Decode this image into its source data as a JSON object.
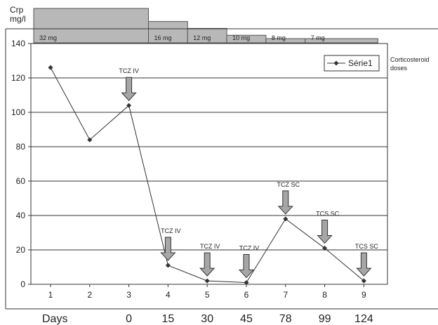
{
  "chart_data": {
    "type": "line",
    "ylabel": "Crp\nmg/l",
    "ylim": [
      0,
      140
    ],
    "yticks": [
      0,
      20,
      40,
      60,
      80,
      100,
      120,
      140
    ],
    "x": [
      "1",
      "2",
      "3",
      "4",
      "5",
      "6",
      "7",
      "8",
      "9"
    ],
    "series": [
      {
        "name": "Série1",
        "values": [
          126,
          84,
          104,
          11,
          2,
          1,
          38,
          21,
          2
        ],
        "color": "#333333"
      }
    ],
    "legend": {
      "position": "top-right",
      "label": "Série1"
    },
    "side_label": "Corticosteroid\ndoses",
    "grid": true,
    "doses": [
      {
        "label": "32 mg",
        "start": 1,
        "end": 3,
        "level": 1.0
      },
      {
        "label": "16 mg",
        "start": 4,
        "end": 4,
        "level": 0.62
      },
      {
        "label": "12 mg",
        "start": 5,
        "end": 5,
        "level": 0.42
      },
      {
        "label": "10 mg",
        "start": 6,
        "end": 6,
        "level": 0.22
      },
      {
        "label": "8 mg",
        "start": 7,
        "end": 7,
        "level": 0.08
      },
      {
        "label": "7 mg",
        "start": 8,
        "end": 9,
        "level": 0.08
      }
    ],
    "annotations": [
      {
        "label": "TCZ IV",
        "x": 3,
        "y": 104
      },
      {
        "label": "TCZ IV",
        "x": 4,
        "y": 11
      },
      {
        "label": "TCZ IV",
        "x": 5,
        "y": 2
      },
      {
        "label": "TCZ IV",
        "x": 6,
        "y": 1
      },
      {
        "label": "TCZ SC",
        "x": 7,
        "y": 38
      },
      {
        "label": "TCS SC",
        "x": 8,
        "y": 21
      },
      {
        "label": "TCS SC",
        "x": 9,
        "y": 2
      }
    ],
    "days_label": "Days",
    "days": [
      "0",
      "15",
      "30",
      "45",
      "78",
      "99",
      "124"
    ]
  }
}
